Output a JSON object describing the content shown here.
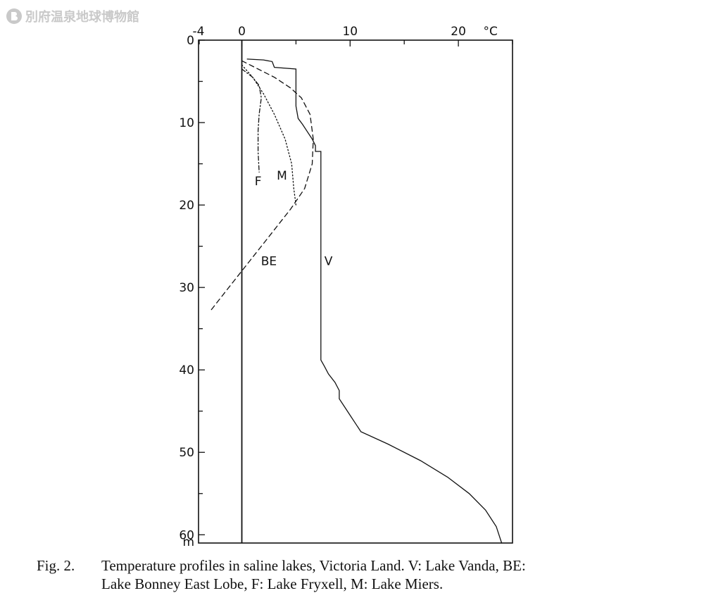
{
  "watermark": {
    "text": "別府温泉地球博物館"
  },
  "caption": {
    "label": "Fig. 2.",
    "line1": "Temperature profiles in saline lakes, Victoria Land.  V: Lake Vanda, BE:",
    "line2": "Lake Bonney East Lobe, F: Lake Fryxell, M: Lake Miers."
  },
  "chart_data": {
    "type": "line",
    "x_axis": {
      "label": "°C",
      "ticks": [
        -4,
        0,
        10,
        20
      ],
      "range": [
        -4,
        25
      ],
      "position": "top"
    },
    "y_axis": {
      "label": "m",
      "ticks": [
        0,
        10,
        20,
        30,
        40,
        50,
        60
      ],
      "range": [
        0,
        61
      ],
      "inverted": true
    },
    "reference_line_x": 0,
    "series": [
      {
        "name": "V",
        "style": "solid",
        "points": [
          [
            0.5,
            2.3
          ],
          [
            2.0,
            2.4
          ],
          [
            2.8,
            2.6
          ],
          [
            3.0,
            3.3
          ],
          [
            5.0,
            3.5
          ],
          [
            5.0,
            8.0
          ],
          [
            5.2,
            9.5
          ],
          [
            5.6,
            10.2
          ],
          [
            6.0,
            11.0
          ],
          [
            6.5,
            12.0
          ],
          [
            6.8,
            12.8
          ],
          [
            6.8,
            13.5
          ],
          [
            7.3,
            13.5
          ],
          [
            7.3,
            38.8
          ],
          [
            7.6,
            39.5
          ],
          [
            8.0,
            40.5
          ],
          [
            8.6,
            41.5
          ],
          [
            9.0,
            42.5
          ],
          [
            9.0,
            43.5
          ],
          [
            9.5,
            44.5
          ],
          [
            10.0,
            45.5
          ],
          [
            10.5,
            46.5
          ],
          [
            11.0,
            47.5
          ],
          [
            13.5,
            49.0
          ],
          [
            16.5,
            51.0
          ],
          [
            19.0,
            53.0
          ],
          [
            21.0,
            55.0
          ],
          [
            22.5,
            57.0
          ],
          [
            23.5,
            59.0
          ],
          [
            24.0,
            61.0
          ]
        ]
      },
      {
        "name": "BE",
        "style": "dashed",
        "points": [
          [
            0,
            2.5
          ],
          [
            1.5,
            3.5
          ],
          [
            3.0,
            4.5
          ],
          [
            4.5,
            5.8
          ],
          [
            5.5,
            7.0
          ],
          [
            6.3,
            9.0
          ],
          [
            6.6,
            12.0
          ],
          [
            6.5,
            15.0
          ],
          [
            5.8,
            18.0
          ],
          [
            4.5,
            20.5
          ],
          [
            3.0,
            23.0
          ],
          [
            1.5,
            25.5
          ],
          [
            0,
            28.0
          ],
          [
            -1.5,
            30.5
          ],
          [
            -3.0,
            33.0
          ]
        ]
      },
      {
        "name": "F",
        "style": "dash-dot",
        "points": [
          [
            0,
            3.5
          ],
          [
            1.0,
            4.5
          ],
          [
            1.6,
            5.5
          ],
          [
            1.8,
            7.0
          ],
          [
            1.6,
            9.0
          ],
          [
            1.5,
            11.0
          ],
          [
            1.5,
            13.5
          ],
          [
            1.6,
            16.0
          ]
        ]
      },
      {
        "name": "M",
        "style": "dotted",
        "points": [
          [
            0,
            3.0
          ],
          [
            1.0,
            4.5
          ],
          [
            2.0,
            6.5
          ],
          [
            3.0,
            9.0
          ],
          [
            4.0,
            12.0
          ],
          [
            4.6,
            15.0
          ],
          [
            4.8,
            18.0
          ],
          [
            5.0,
            20.0
          ]
        ]
      }
    ]
  }
}
